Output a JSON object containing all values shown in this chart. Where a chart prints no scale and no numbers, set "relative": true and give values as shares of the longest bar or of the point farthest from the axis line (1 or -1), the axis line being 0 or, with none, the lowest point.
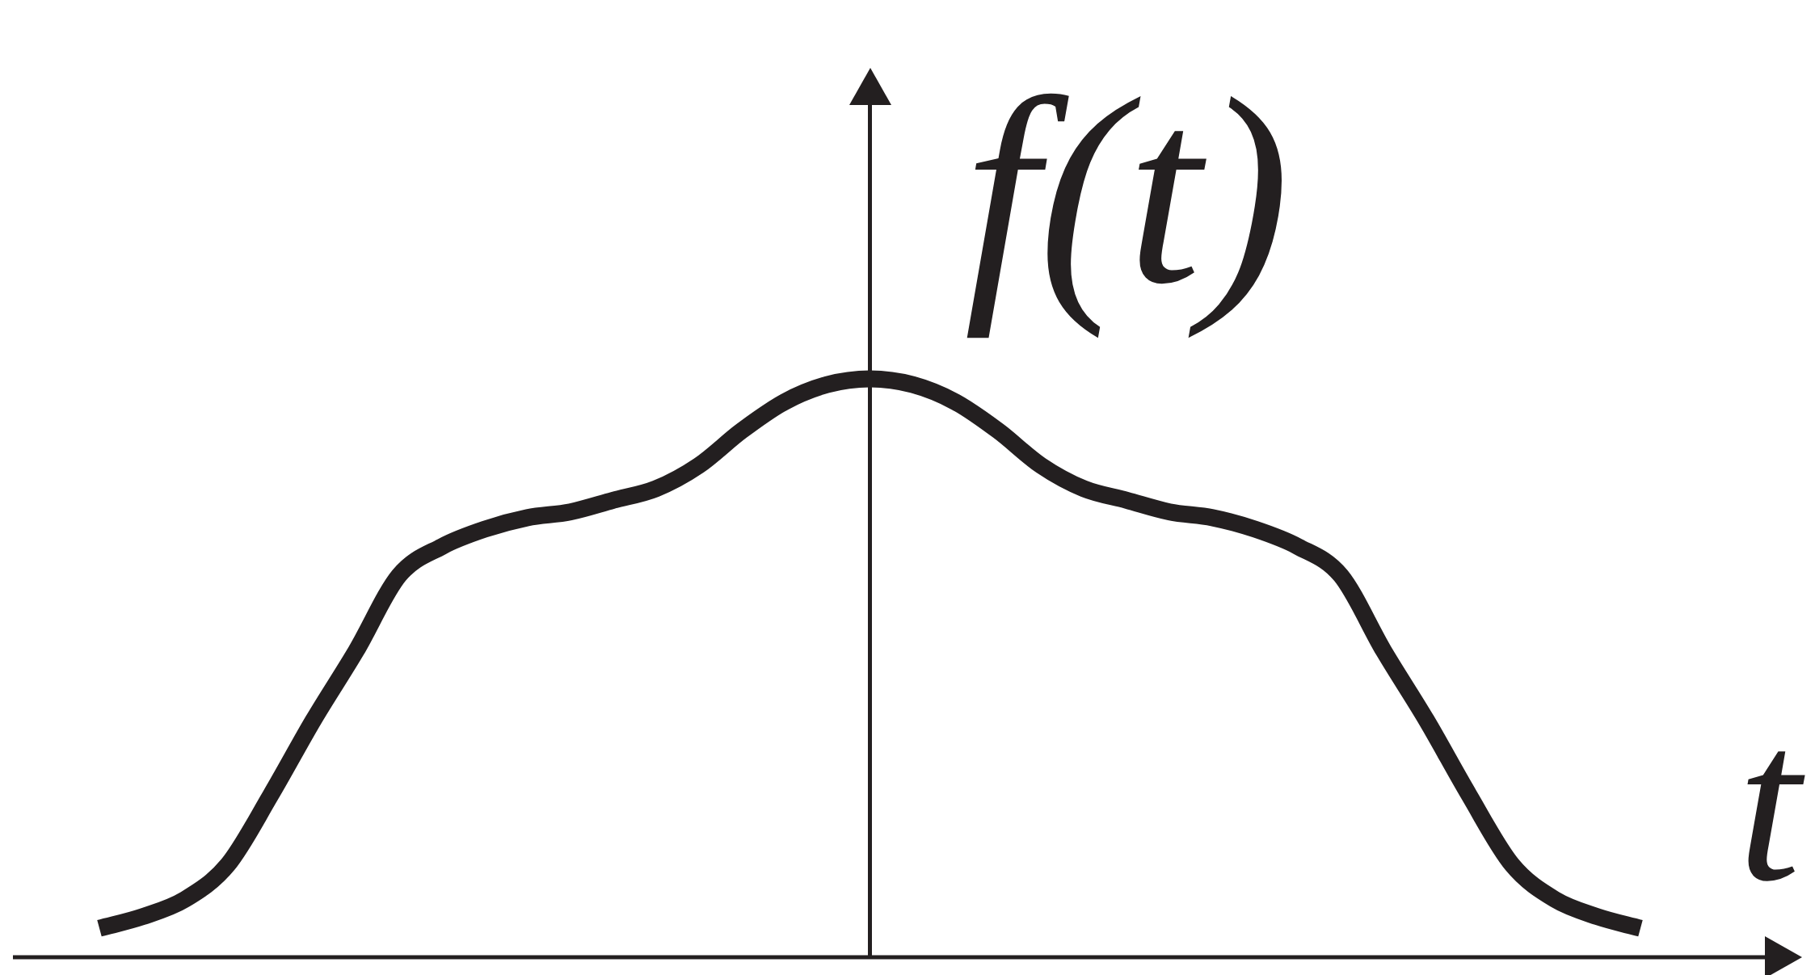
{
  "chart_data": {
    "type": "line",
    "relative": true,
    "xlabel": "t",
    "ylabel": "f(t)",
    "legend": false,
    "marker": "none",
    "categories": [
      null,
      null,
      null,
      null,
      null,
      null,
      null,
      null,
      null,
      null,
      null,
      null,
      null,
      null,
      null,
      null,
      null,
      null,
      null,
      null,
      null,
      null,
      null,
      null,
      null,
      null,
      null,
      null,
      null,
      null,
      null,
      null,
      null,
      null,
      null,
      null,
      null
    ],
    "series": [
      {
        "color": "#231f20",
        "values": [
          0.05,
          0.07,
          0.1,
          0.16,
          0.28,
          0.41,
          0.53,
          0.66,
          0.71,
          0.74,
          0.76,
          0.77,
          0.79,
          0.81,
          0.85,
          0.91,
          0.96,
          0.99,
          1,
          0.99,
          0.96,
          0.91,
          0.85,
          0.81,
          0.79,
          0.77,
          0.76,
          0.74,
          0.71,
          0.66,
          0.53,
          0.41,
          0.28,
          0.16,
          0.1,
          0.07,
          0.05
        ]
      }
    ]
  }
}
